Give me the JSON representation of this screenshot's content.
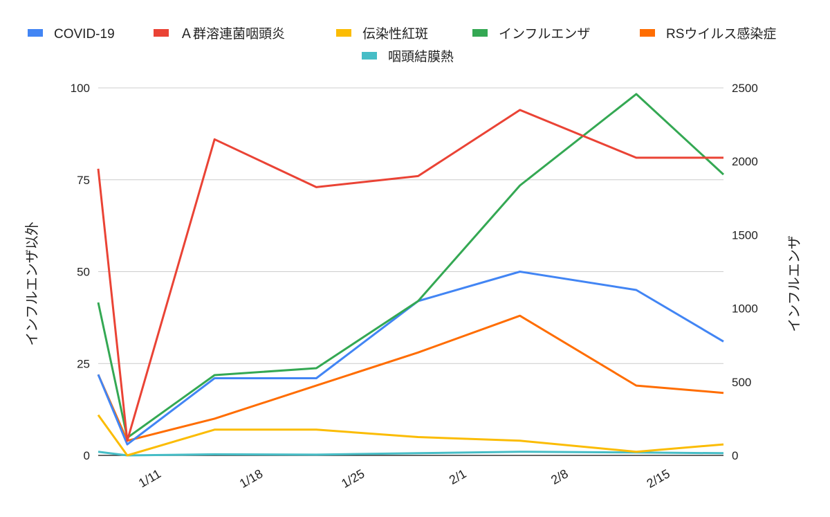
{
  "chart_data": {
    "type": "line",
    "title": "",
    "x": [
      "1/7",
      "1/9",
      "1/15",
      "1/22",
      "1/29",
      "2/5",
      "2/13",
      "2/19"
    ],
    "xticks": [
      "1/11",
      "1/18",
      "1/25",
      "2/1",
      "2/8",
      "2/15"
    ],
    "ylabel_left": "インフルエンザ以外",
    "ylabel_right": "インフルエンザ",
    "ylim_left": [
      0,
      100
    ],
    "ylim_right": [
      0,
      2500
    ],
    "yticks_left": [
      0,
      25,
      50,
      75,
      100
    ],
    "yticks_right": [
      0,
      500,
      1000,
      1500,
      2000,
      2500
    ],
    "grid": true,
    "legend_position": "top",
    "series": [
      {
        "name": "COVID-19",
        "color": "#4285f4",
        "axis": "left",
        "values": [
          22,
          3,
          21,
          21,
          42,
          50,
          45,
          31
        ]
      },
      {
        "name": "Ａ群溶連菌咽頭炎",
        "color": "#ea4335",
        "axis": "left",
        "values": [
          78,
          4,
          86,
          73,
          76,
          94,
          81,
          81
        ]
      },
      {
        "name": "伝染性紅斑",
        "color": "#fbbc04",
        "axis": "left",
        "values": [
          11,
          0,
          7,
          7,
          5,
          4,
          1,
          3
        ]
      },
      {
        "name": "インフルエンザ",
        "color": "#34a853",
        "axis": "right",
        "values": [
          1040,
          120,
          546,
          593,
          1050,
          1836,
          2458,
          1911
        ]
      },
      {
        "name": "RSウイルス感染症",
        "color": "#ff6d01",
        "axis": "left",
        "values": [
          22,
          4,
          10,
          19,
          28,
          38,
          19,
          17
        ]
      },
      {
        "name": "咽頭結膜熱",
        "color": "#46bdc6",
        "axis": "left",
        "values": [
          1,
          0,
          0.3,
          0.2,
          0.6,
          1,
          0.8,
          0.6
        ]
      }
    ]
  }
}
